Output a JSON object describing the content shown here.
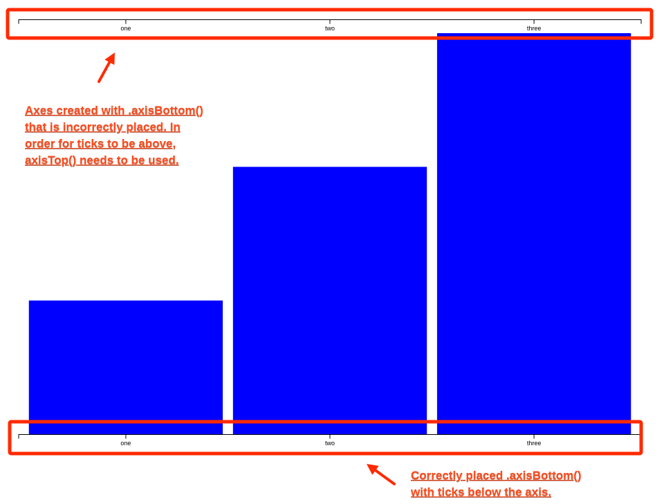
{
  "chart_data": {
    "type": "bar",
    "categories": [
      "one",
      "two",
      "three"
    ],
    "values": [
      200,
      400,
      600
    ],
    "ylim": [
      0,
      600
    ],
    "xlabel": "",
    "ylabel": "",
    "grid": false,
    "bar_color": "#0000ff"
  },
  "axes": {
    "top_axis_tick_labels": [
      "one",
      "two",
      "three"
    ],
    "bottom_axis_tick_labels": [
      "one",
      "two",
      "three"
    ]
  },
  "annotations": {
    "highlight_color": "#ff2a00",
    "callout_color": "#ff4a1c",
    "top_callout_lines": [
      "Axes created with .axisBottom()",
      "that is incorrectly placed.  In",
      "order for ticks to be above,",
      "axisTop() needs to be used."
    ],
    "bottom_callout_lines": [
      "Correctly placed .axisBottom()",
      "with ticks below the axis."
    ]
  }
}
